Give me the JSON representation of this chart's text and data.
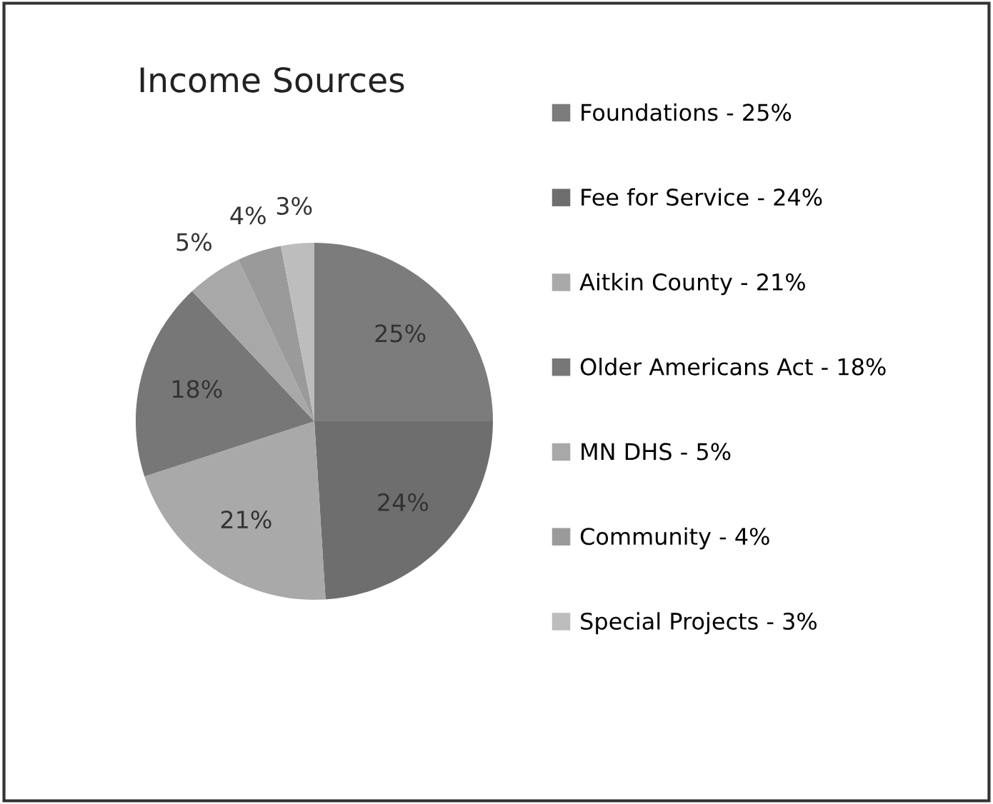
{
  "chart_data": {
    "type": "pie",
    "title": "Income Sources",
    "categories": [
      "Foundations - 25%",
      "Fee for Service - 24%",
      "Aitkin County - 21%",
      "Older Americans Act - 18%",
      "MN DHS - 5%",
      "Community - 4%",
      "Special Projects - 3%"
    ],
    "values": [
      25,
      24,
      21,
      18,
      5,
      4,
      3
    ],
    "value_labels": [
      "25%",
      "24%",
      "21%",
      "18%",
      "5%",
      "4%",
      "3%"
    ],
    "colors": [
      "#7c7c7c",
      "#6e6e6e",
      "#a9a9a9",
      "#777777",
      "#a8a8a8",
      "#9a9a9a",
      "#bdbdbd"
    ],
    "legend": "right"
  }
}
